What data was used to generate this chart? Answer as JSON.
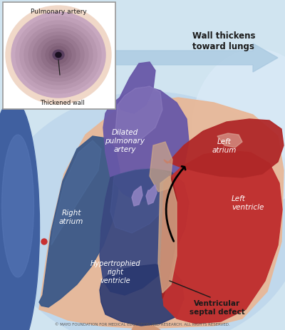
{
  "copyright_text": "© MAYO FOUNDATION FOR MEDICAL EDUCATION AND RESEARCH. ALL RIGHTS RESERVED.",
  "labels": {
    "pulmonary_artery": "Pulmonary artery",
    "thickened_wall": "Thickened wall",
    "wall_thickens": "Wall thickens\ntoward lungs",
    "dilated_pulmonary": "Dilated\npulmonary\nartery",
    "left_atrium": "Left\natrium",
    "right_atrium": "Right\natrium",
    "left_ventricle": "Left\nventricle",
    "hypertrophied": "Hypertrophied\nright\nventricle",
    "vsd": "Ventricular\nseptal defect"
  },
  "colors": {
    "bg": "#d0e4f0",
    "bg2": "#b8d0e4",
    "heart_red": "#c03030",
    "heart_red_dark": "#982020",
    "right_blue": "#3a5888",
    "right_blue_light": "#5070a0",
    "purple": "#6858a8",
    "purple_light": "#9888c8",
    "peach": "#e8b898",
    "peach_dark": "#d09878",
    "white": "#ffffff",
    "arrow_blue": "#a8c8e0",
    "text_dark": "#1a1a1a",
    "text_white": "#ffffff",
    "copyright": "#555555",
    "inset_outer": "#d8b8c8",
    "inset_mid": "#b898b0",
    "inset_inner": "#8868888",
    "inset_center": "#2a1830"
  },
  "figsize": [
    4.0,
    4.64
  ],
  "dpi": 100
}
